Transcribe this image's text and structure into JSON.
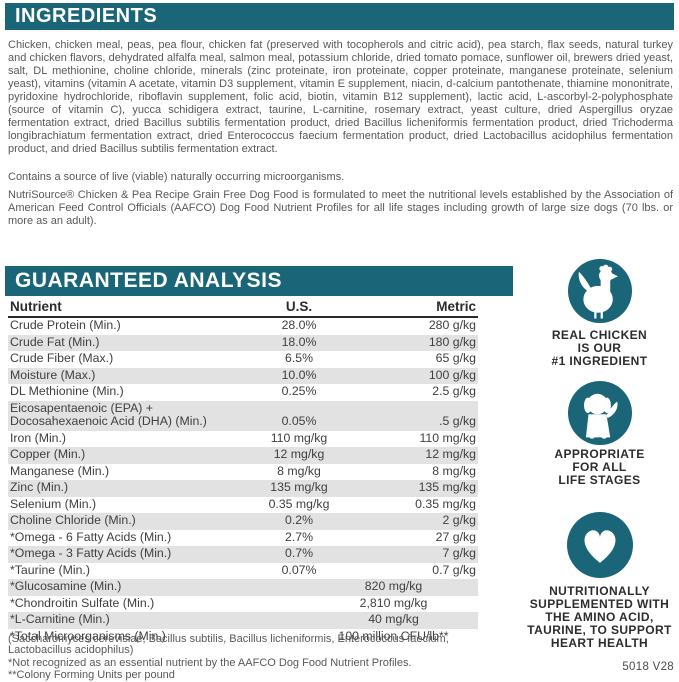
{
  "colors": {
    "teal": "#1a6577",
    "row_shade": "#e2e2e2"
  },
  "header": {
    "ingredients_title": "INGREDIENTS",
    "analysis_title": "GUARANTEED ANALYSIS"
  },
  "ingredients": {
    "text": "Chicken, chicken meal, peas, pea flour, chicken fat (preserved with tocopherols and citric acid), pea starch, flax seeds, natural turkey and chicken flavors, dehydrated alfalfa meal, salmon meal, potassium chloride, dried tomato pomace, sunflower oil, brewers dried yeast, salt, DL methionine, choline chloride, minerals (zinc proteinate, iron proteinate, copper proteinate, manganese proteinate, selenium yeast), vitamins (vitamin A acetate, vitamin D3 supplement, vitamin E supplement, niacin, d-calcium pantothenate, thiamine mononitrate, pyridoxine hydrochloride, riboflavin supplement, folic acid, biotin, vitamin B12 supplement), lactic acid, L-ascorbyl-2-polyphosphate (source of vitamin C), yucca schidigera extract, taurine, L-carnitine, rosemary extract, yeast culture, dried Aspergillus oryzae fermentation extract, dried Bacillus subtilis fermentation product, dried Bacillus licheniformis fermentation product, dried Trichoderma longibrachiatum fermentation extract, dried Enterococcus faecium fermentation product, dried Lactobacillus acidophilus fermentation product, and dried Bacillus subtilis fermentation extract.",
    "contains_note": "Contains a source of live (viable) naturally occurring microorganisms.",
    "formulation_note": "NutriSource® Chicken & Pea Recipe Grain Free Dog Food is formulated to meet the nutritional levels established by the Association of American Feed Control Officials (AAFCO) Dog Food Nutrient Profiles for all life stages including growth of large size dogs (70 lbs. or more as an adult)."
  },
  "analysis_table": {
    "columns": [
      "Nutrient",
      "U.S.",
      "Metric"
    ],
    "rows": [
      {
        "nutrient": "Crude Protein (Min.)",
        "us": "28.0%",
        "metric": "280 g/kg"
      },
      {
        "nutrient": "Crude Fat (Min.)",
        "us": "18.0%",
        "metric": "180 g/kg"
      },
      {
        "nutrient": "Crude Fiber (Max.)",
        "us": "6.5%",
        "metric": "65 g/kg"
      },
      {
        "nutrient": "Moisture (Max.)",
        "us": "10.0%",
        "metric": "100 g/kg"
      },
      {
        "nutrient": "DL Methionine (Min.)",
        "us": "0.25%",
        "metric": "2.5 g/kg"
      },
      {
        "nutrient": [
          "Eicosapentaenoic (EPA) +",
          "Docosahexaenoic Acid (DHA) (Min.)"
        ],
        "us": "0.05%",
        "metric": ".5 g/kg"
      },
      {
        "nutrient": "Iron (Min.)",
        "us": "110 mg/kg",
        "metric": "110 mg/kg"
      },
      {
        "nutrient": "Copper (Min.)",
        "us": "12 mg/kg",
        "metric": "12 mg/kg"
      },
      {
        "nutrient": "Manganese (Min.)",
        "us": "8 mg/kg",
        "metric": "8 mg/kg"
      },
      {
        "nutrient": "Zinc (Min.)",
        "us": "135 mg/kg",
        "metric": "135 mg/kg"
      },
      {
        "nutrient": "Selenium (Min.)",
        "us": "0.35 mg/kg",
        "metric": "0.35 mg/kg"
      },
      {
        "nutrient": "Choline Chloride (Min.)",
        "us": "0.2%",
        "metric": "2 g/kg"
      },
      {
        "nutrient": "*Omega - 6 Fatty Acids (Min.)",
        "us": "2.7%",
        "metric": "27 g/kg"
      },
      {
        "nutrient": "*Omega - 3 Fatty Acids (Min.)",
        "us": "0.7%",
        "metric": "7 g/kg"
      },
      {
        "nutrient": "*Taurine (Min.)",
        "us": "0.07%",
        "metric": "0.7 g/kg"
      },
      {
        "nutrient": "*Glucosamine (Min.)",
        "value": "820 mg/kg",
        "span": true
      },
      {
        "nutrient": "*Chondroitin Sulfate (Min.)",
        "value": "2,810 mg/kg",
        "span": true
      },
      {
        "nutrient": "*L-Carnitine (Min.)",
        "value": "40 mg/kg",
        "span": true
      },
      {
        "nutrient": "*Total Microorganisms (Min.)",
        "value": "100 million CFU/lb**",
        "span": true
      }
    ],
    "footnotes": [
      "(Saccharomyces cerevisiae, Bacillus subtilis, Bacillus licheniformis, Enterococcus faecium, Lactobacillus acidophilus)",
      "*Not recognized as an essential nutrient by the AAFCO Dog Food Nutrient Profiles.",
      "**Colony Forming Units per pound"
    ]
  },
  "badges": [
    {
      "icon": "chicken-icon",
      "caption": "REAL CHICKEN\nIS OUR\n#1 INGREDIENT"
    },
    {
      "icon": "dog-icon",
      "caption": "APPROPRIATE\nFOR ALL\nLIFE STAGES"
    },
    {
      "icon": "heart-icon",
      "caption": "NUTRITIONALLY\nSUPPLEMENTED WITH\nTHE AMINO ACID,\nTAURINE, TO SUPPORT\nHEART HEALTH"
    }
  ],
  "footer": {
    "code": "5018 V28"
  }
}
